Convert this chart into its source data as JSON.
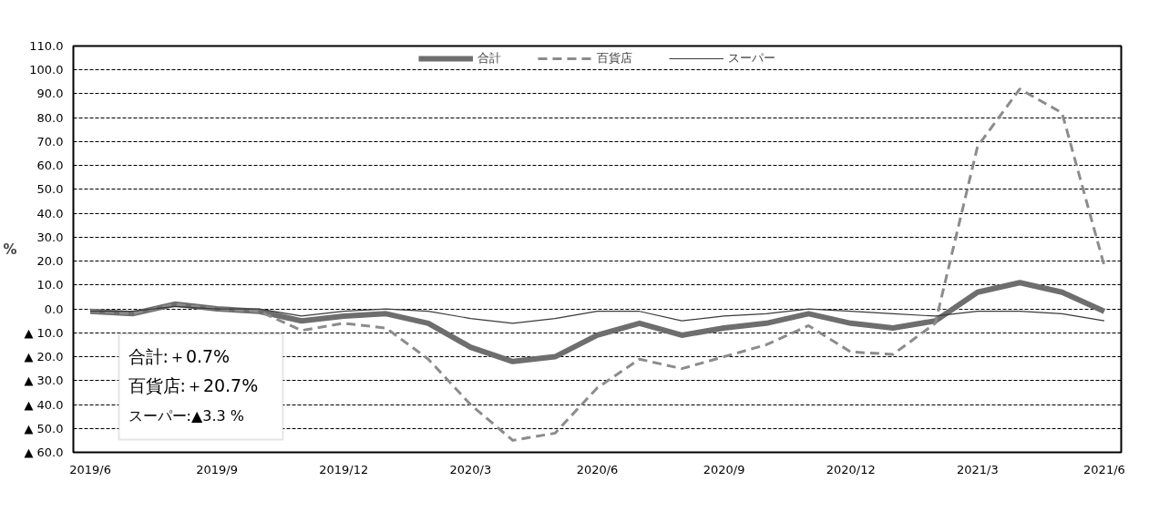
{
  "chart_data": {
    "type": "line",
    "ylabel": "%",
    "categories": [
      "2019/6",
      null,
      null,
      "2019/9",
      null,
      null,
      "2019/12",
      null,
      null,
      "2020/3",
      null,
      null,
      "2020/6",
      null,
      null,
      "2020/9",
      null,
      null,
      "2020/12",
      null,
      null,
      "2021/3",
      null,
      null,
      "2021/6"
    ],
    "series": [
      {
        "name": "合計",
        "color": "#6e6e6e",
        "line_style": "solid",
        "values": [
          -1,
          -2,
          2,
          0,
          -1,
          -5,
          -3,
          -2,
          -6,
          -16,
          -22,
          -20,
          -11,
          -6,
          -11,
          -8,
          -6,
          -2,
          -6,
          -8,
          -5,
          7,
          11,
          7,
          -1
        ]
      },
      {
        "name": "百貨店",
        "color": "#8c8c8c",
        "line_style": "dashed",
        "values": [
          -1,
          -2,
          2,
          0,
          -1,
          -9,
          -6,
          -8,
          -21,
          -40,
          -55,
          -52,
          -33,
          -21,
          -25,
          -20,
          -15,
          -7,
          -18,
          -19,
          -6,
          68,
          92,
          82,
          18
        ]
      },
      {
        "name": "スーパー",
        "color": "#3a3a3a",
        "line_style": "solid",
        "values": [
          -1,
          -1,
          1,
          0,
          0,
          -3,
          -1,
          0,
          -1,
          -4,
          -6,
          -4,
          -1,
          -1,
          -5,
          -3,
          -2,
          0,
          -1,
          -2,
          -3,
          -1,
          -1,
          -2,
          -5
        ]
      }
    ],
    "ylim": [
      -60,
      110
    ],
    "yticks": [
      {
        "value": -60,
        "label": "▲ 60.0"
      },
      {
        "value": -50,
        "label": "▲ 50.0"
      },
      {
        "value": -40,
        "label": "▲ 40.0"
      },
      {
        "value": -30,
        "label": "▲ 30.0"
      },
      {
        "value": -20,
        "label": "▲ 20.0"
      },
      {
        "value": -10,
        "label": "▲ 10.0"
      },
      {
        "value": 0,
        "label": "0.0"
      },
      {
        "value": 10,
        "label": "10.0"
      },
      {
        "value": 20,
        "label": "20.0"
      },
      {
        "value": 30,
        "label": "30.0"
      },
      {
        "value": 40,
        "label": "40.0"
      },
      {
        "value": 50,
        "label": "50.0"
      },
      {
        "value": 60,
        "label": "60.0"
      },
      {
        "value": 70,
        "label": "70.0"
      },
      {
        "value": 80,
        "label": "80.0"
      },
      {
        "value": 90,
        "label": "90.0"
      },
      {
        "value": 100,
        "label": "100.0"
      },
      {
        "value": 110,
        "label": "110.0"
      }
    ],
    "grid": "y",
    "legend": "top",
    "marker": "none",
    "annotations": [
      "合計:＋0.7%",
      "百貨店:＋20.7%",
      "スーパー:▲3.3 %"
    ]
  }
}
